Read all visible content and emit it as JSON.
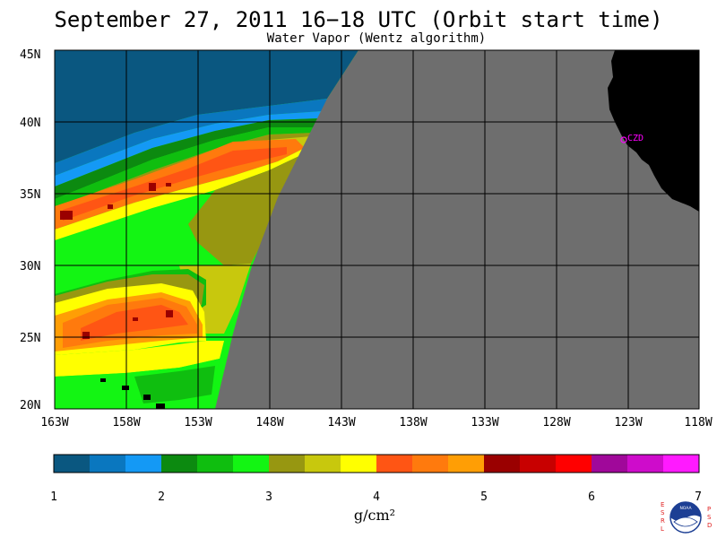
{
  "title": "September 27, 2011  16−18 UTC  (Orbit start time)",
  "subtitle": "Water Vapor (Wentz algorithm)",
  "map": {
    "lat_labels": [
      "45N",
      "40N",
      "35N",
      "30N",
      "25N",
      "20N"
    ],
    "lon_labels": [
      "163W",
      "158W",
      "153W",
      "148W",
      "143W",
      "138W",
      "133W",
      "128W",
      "123W",
      "118W"
    ],
    "station_label": "CZD",
    "land_color": "#000000",
    "no_data_color": "#6e6e6e",
    "station_color": "#ff00ff"
  },
  "colorbar": {
    "tick_labels": [
      "1",
      "2",
      "3",
      "4",
      "5",
      "6",
      "7"
    ],
    "unit_label": "g/cm²",
    "colors": [
      "#0a5780",
      "#0a77bf",
      "#1499f5",
      "#0c8a10",
      "#0fbe0f",
      "#13f513",
      "#979711",
      "#c8c80d",
      "#ffff00",
      "#ff5514",
      "#ff7a0d",
      "#ff9e05",
      "#9a0000",
      "#c80000",
      "#ff0000",
      "#a0089a",
      "#ce0ccb",
      "#ff1aff"
    ]
  },
  "logo": {
    "left_letters": "ESRL",
    "right_letters": "PSD",
    "badge_text": "NOAA",
    "primary_color": "#1d3f94",
    "accent_color": "#e02020"
  }
}
